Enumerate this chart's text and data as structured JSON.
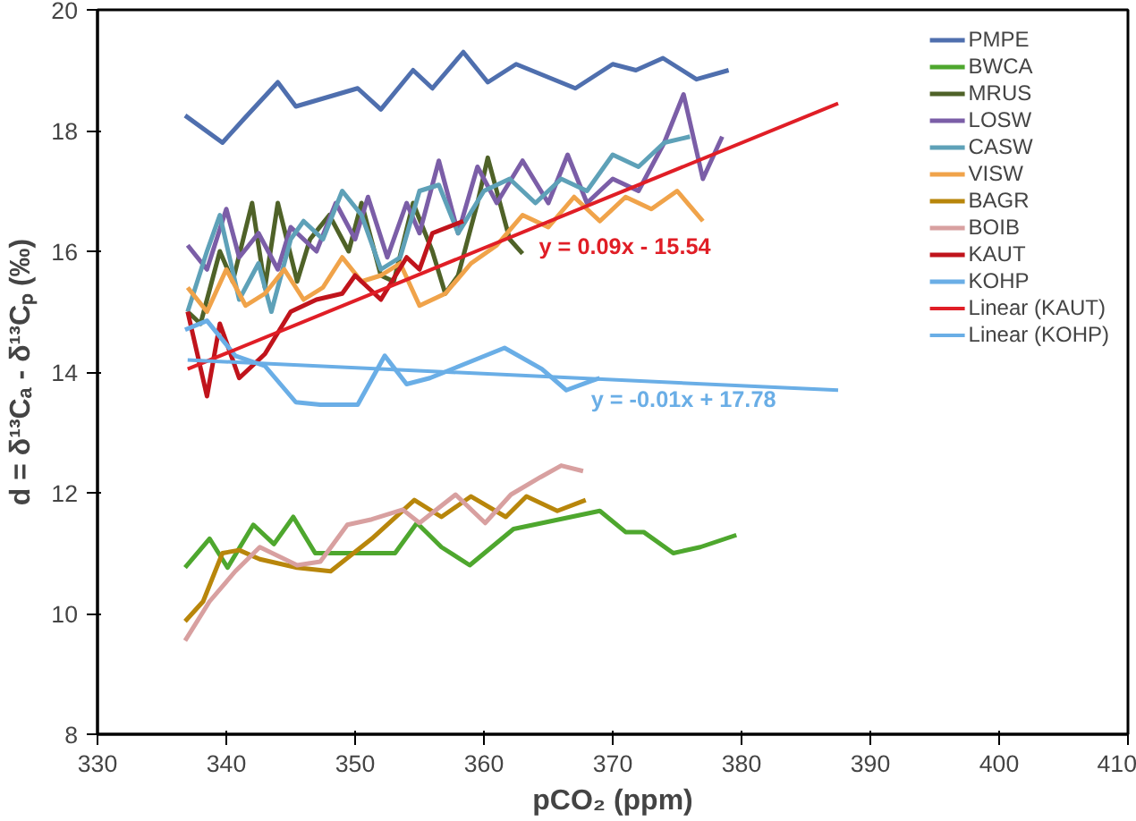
{
  "chart_data": {
    "type": "line",
    "xlabel": "pCO₂ (ppm)",
    "ylabel": "d = δ¹³Cₐ - δ¹³Cₚ (‰)",
    "xlim": [
      330,
      410
    ],
    "xticks": [
      330,
      340,
      350,
      360,
      370,
      380,
      390,
      400,
      410
    ],
    "ylim": [
      8,
      20
    ],
    "yticks": [
      8,
      10,
      12,
      14,
      16,
      18,
      20
    ],
    "grid": false,
    "legend": "top right",
    "marker": "none",
    "line_style": "solid",
    "series": [
      {
        "name": "PMPE",
        "color": "#4f6fae",
        "x": [
          336.8,
          339.7,
          341.4,
          344,
          345.4,
          350.2,
          352,
          354.5,
          356,
          358.4,
          360.3,
          362.5,
          367.1,
          370,
          371.8,
          373.9,
          376.5,
          379
        ],
        "values": [
          18.25,
          17.8,
          18.2,
          18.8,
          18.4,
          18.7,
          18.35,
          19.0,
          18.7,
          19.3,
          18.8,
          19.1,
          18.7,
          19.1,
          19.0,
          19.2,
          18.85,
          19.0
        ]
      },
      {
        "name": "BWCA",
        "color": "#4ea72e",
        "x": [
          336.8,
          338.7,
          340.1,
          342.1,
          343.7,
          345.2,
          346.9,
          353.1,
          354.8,
          356.7,
          358.9,
          362.3,
          369,
          371,
          372.4,
          374.7,
          376.8,
          379.6
        ],
        "values": [
          10.76,
          11.24,
          10.76,
          11.47,
          11.15,
          11.6,
          11.0,
          11.0,
          11.5,
          11.1,
          10.8,
          11.4,
          11.7,
          11.35,
          11.35,
          11.0,
          11.1,
          11.3
        ]
      },
      {
        "name": "MRUS",
        "color": "#4f6228",
        "x": [
          337,
          338,
          339.5,
          340.5,
          342,
          343,
          344,
          345.5,
          346.5,
          348,
          349.5,
          350.5,
          352,
          353,
          354.5,
          356,
          357,
          358,
          359.5,
          360.3,
          362,
          363
        ],
        "values": [
          15.0,
          14.8,
          16.0,
          15.5,
          16.8,
          15.4,
          16.8,
          15.5,
          16.2,
          16.6,
          16.0,
          16.8,
          15.6,
          15.5,
          16.8,
          16.0,
          15.3,
          15.6,
          16.8,
          17.55,
          16.2,
          15.96
        ]
      },
      {
        "name": "LOSW",
        "color": "#7b5ea7",
        "x": [
          337,
          338.5,
          340,
          341,
          342.5,
          344,
          345,
          347,
          348.5,
          350,
          351,
          352.5,
          354,
          355,
          356.5,
          358,
          359.5,
          361,
          363,
          365,
          366.5,
          368,
          370,
          372,
          374,
          375.5,
          377,
          378.5
        ],
        "values": [
          16.1,
          15.7,
          16.7,
          15.9,
          16.3,
          15.7,
          16.4,
          16.0,
          16.8,
          16.2,
          16.9,
          15.9,
          16.8,
          16.3,
          17.5,
          16.3,
          17.4,
          16.8,
          17.5,
          16.8,
          17.6,
          16.8,
          17.2,
          17.0,
          17.8,
          18.6,
          17.2,
          17.9
        ]
      },
      {
        "name": "CASW",
        "color": "#5ea1b8",
        "x": [
          337,
          338.5,
          339.5,
          341,
          342.5,
          343.5,
          345,
          346,
          347.5,
          349,
          350.5,
          352,
          353.5,
          355,
          356.5,
          358,
          360,
          362,
          364,
          366,
          368,
          370,
          372,
          374,
          376
        ],
        "values": [
          15.0,
          16.0,
          16.6,
          15.2,
          15.8,
          15.0,
          16.2,
          16.5,
          16.2,
          17.0,
          16.6,
          15.7,
          15.9,
          17.0,
          17.1,
          16.3,
          17.0,
          17.2,
          16.8,
          17.2,
          17.0,
          17.6,
          17.4,
          17.8,
          17.9
        ]
      },
      {
        "name": "VISW",
        "color": "#f0a34a",
        "x": [
          337,
          338.5,
          340,
          341.5,
          343,
          344.5,
          346,
          347.5,
          349,
          350.5,
          352,
          353.5,
          355,
          357,
          359,
          361,
          363,
          365,
          367,
          369,
          371,
          373,
          375,
          377
        ],
        "values": [
          15.4,
          15.0,
          15.7,
          15.1,
          15.3,
          15.7,
          15.2,
          15.4,
          15.9,
          15.5,
          15.6,
          15.8,
          15.1,
          15.3,
          15.8,
          16.1,
          16.6,
          16.4,
          16.9,
          16.5,
          16.9,
          16.7,
          17.0,
          16.5
        ]
      },
      {
        "name": "BAGR",
        "color": "#b8860b",
        "x": [
          336.8,
          338.2,
          339.7,
          341,
          342.6,
          345.5,
          348.1,
          351.3,
          354.6,
          356.7,
          359,
          361.7,
          363.3,
          365.7,
          367.9
        ],
        "values": [
          9.87,
          10.2,
          11.0,
          11.05,
          10.9,
          10.76,
          10.7,
          11.24,
          11.88,
          11.6,
          11.94,
          11.6,
          11.94,
          11.7,
          11.88
        ]
      },
      {
        "name": "BOIB",
        "color": "#d8a0a0",
        "x": [
          336.8,
          338.7,
          340.7,
          342.6,
          345.5,
          347.3,
          349.4,
          351.3,
          353.7,
          355,
          357.8,
          360.1,
          362.1,
          364.4,
          366,
          367.7
        ],
        "values": [
          9.55,
          10.2,
          10.7,
          11.1,
          10.8,
          10.86,
          11.47,
          11.56,
          11.72,
          11.5,
          11.97,
          11.5,
          11.97,
          12.26,
          12.45,
          12.36
        ]
      },
      {
        "name": "KAUT",
        "color": "#c0141c",
        "x": [
          337,
          338.5,
          339.5,
          341,
          343,
          345,
          347,
          349,
          350,
          352,
          354,
          355,
          356,
          358.4
        ],
        "values": [
          15.0,
          13.6,
          14.8,
          13.9,
          14.3,
          15.0,
          15.2,
          15.3,
          15.6,
          15.2,
          15.9,
          15.7,
          16.3,
          16.5
        ]
      },
      {
        "name": "KOHP",
        "color": "#6aaee6",
        "x": [
          336.8,
          338.5,
          340.7,
          343,
          345.4,
          347.3,
          350.2,
          352.3,
          354,
          355.8,
          361.6,
          364.5,
          366.4,
          368.3,
          369
        ],
        "values": [
          14.7,
          14.85,
          14.27,
          14.1,
          13.5,
          13.46,
          13.46,
          14.27,
          13.8,
          13.9,
          14.4,
          14.05,
          13.7,
          13.85,
          13.9
        ]
      },
      {
        "name": "Linear (KAUT)",
        "color": "#e01e26",
        "x": [
          337,
          387.5
        ],
        "values": [
          14.05,
          18.45
        ]
      },
      {
        "name": "Linear (KOHP)",
        "color": "#6aaee6",
        "x": [
          337,
          387.5
        ],
        "values": [
          14.2,
          13.7
        ]
      }
    ],
    "annotations": [
      "y = 0.09x - 15.54",
      "y = -0.01x + 17.78"
    ]
  }
}
